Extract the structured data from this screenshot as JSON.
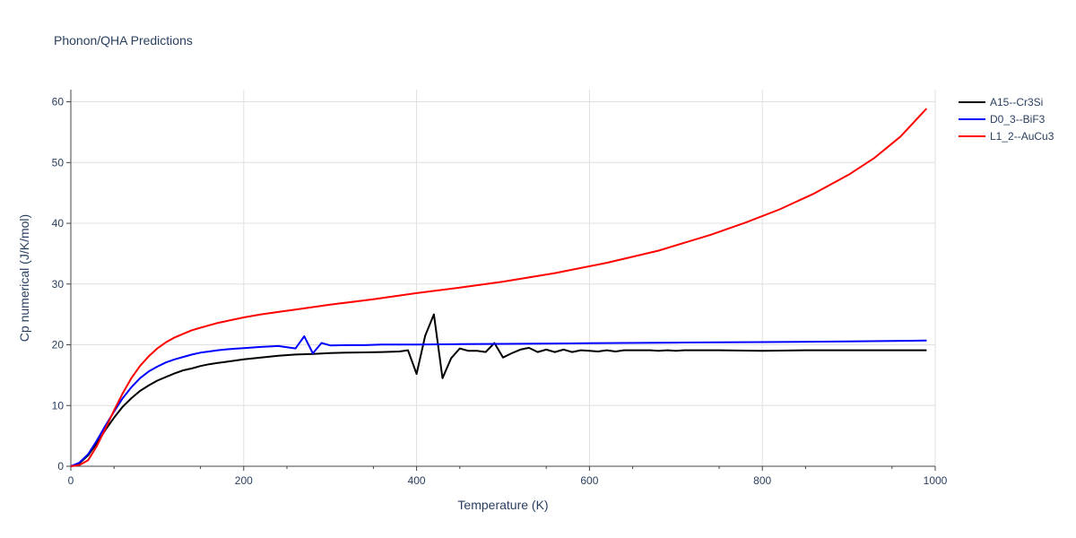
{
  "chart_data": {
    "type": "line",
    "title": "Phonon/QHA Predictions",
    "xlabel": "Temperature (K)",
    "ylabel": "Cp numerical (J/K/mol)",
    "xlim": [
      0,
      1000
    ],
    "ylim": [
      0,
      62
    ],
    "xticks": [
      0,
      200,
      400,
      600,
      800,
      1000
    ],
    "yticks": [
      0,
      10,
      20,
      30,
      40,
      50,
      60
    ],
    "grid": true,
    "legend_position": "top-right",
    "series": [
      {
        "name": "A15--Cr3Si",
        "color": "#000000",
        "x": [
          0,
          10,
          20,
          30,
          40,
          50,
          60,
          70,
          80,
          90,
          100,
          110,
          120,
          130,
          140,
          150,
          160,
          170,
          180,
          190,
          200,
          220,
          240,
          260,
          280,
          300,
          320,
          340,
          360,
          380,
          390,
          400,
          410,
          420,
          430,
          440,
          450,
          460,
          470,
          480,
          490,
          500,
          510,
          520,
          530,
          540,
          550,
          560,
          570,
          580,
          590,
          600,
          610,
          620,
          630,
          640,
          650,
          660,
          670,
          680,
          690,
          700,
          710,
          720,
          750,
          800,
          850,
          900,
          950,
          990
        ],
        "y": [
          0,
          0.5,
          1.8,
          3.8,
          6.0,
          8.0,
          9.8,
          11.2,
          12.4,
          13.3,
          14.1,
          14.7,
          15.3,
          15.8,
          16.1,
          16.5,
          16.8,
          17.0,
          17.2,
          17.4,
          17.6,
          17.9,
          18.2,
          18.4,
          18.5,
          18.65,
          18.7,
          18.75,
          18.8,
          18.9,
          19.1,
          15.2,
          21.5,
          25.0,
          14.5,
          17.8,
          19.4,
          19.0,
          19.0,
          18.8,
          20.3,
          17.9,
          18.6,
          19.2,
          19.5,
          18.8,
          19.2,
          18.8,
          19.2,
          18.8,
          19.1,
          19.0,
          18.9,
          19.1,
          18.9,
          19.1,
          19.1,
          19.1,
          19.1,
          19.0,
          19.1,
          19.0,
          19.1,
          19.1,
          19.1,
          19.0,
          19.1,
          19.1,
          19.1,
          19.1
        ]
      },
      {
        "name": "D0_3--BiF3",
        "color": "#0000ff",
        "x": [
          0,
          10,
          20,
          30,
          40,
          50,
          60,
          70,
          80,
          90,
          100,
          110,
          120,
          130,
          140,
          150,
          160,
          170,
          180,
          190,
          200,
          220,
          240,
          260,
          270,
          280,
          290,
          300,
          320,
          340,
          360,
          380,
          400,
          450,
          500,
          600,
          700,
          800,
          900,
          990
        ],
        "y": [
          0,
          0.6,
          2.0,
          4.2,
          6.7,
          9.0,
          11.2,
          13.0,
          14.5,
          15.6,
          16.4,
          17.1,
          17.6,
          18.0,
          18.4,
          18.7,
          18.9,
          19.1,
          19.25,
          19.35,
          19.45,
          19.65,
          19.8,
          19.4,
          21.4,
          18.6,
          20.3,
          19.9,
          19.95,
          19.95,
          20.05,
          20.05,
          20.05,
          20.1,
          20.15,
          20.25,
          20.35,
          20.45,
          20.55,
          20.7
        ]
      },
      {
        "name": "L1_2--AuCu3",
        "color": "#ff0000",
        "x": [
          0,
          10,
          20,
          30,
          40,
          50,
          60,
          70,
          80,
          90,
          100,
          110,
          120,
          130,
          140,
          150,
          160,
          170,
          180,
          200,
          220,
          240,
          260,
          280,
          300,
          350,
          400,
          450,
          500,
          560,
          620,
          680,
          740,
          780,
          820,
          860,
          900,
          930,
          960,
          990
        ],
        "y": [
          0,
          0.2,
          1.0,
          3.3,
          6.2,
          9.2,
          12.0,
          14.5,
          16.5,
          18.1,
          19.4,
          20.4,
          21.2,
          21.8,
          22.4,
          22.8,
          23.2,
          23.6,
          23.9,
          24.5,
          25.0,
          25.4,
          25.8,
          26.2,
          26.6,
          27.5,
          28.5,
          29.4,
          30.4,
          31.8,
          33.5,
          35.5,
          38.1,
          40.1,
          42.3,
          44.9,
          48.0,
          50.8,
          54.3,
          58.9
        ]
      }
    ]
  }
}
